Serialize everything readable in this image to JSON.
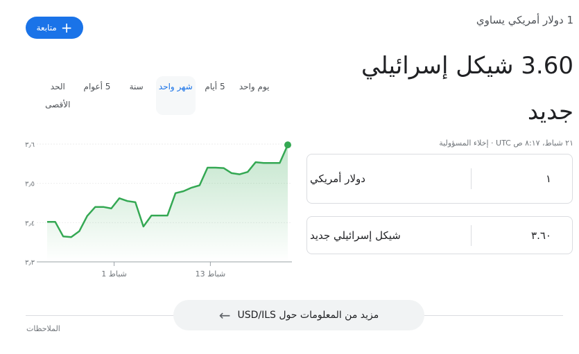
{
  "header": {
    "subtitle": "1 دولار أمريكي يساوي",
    "result": "3.60 شيكل إسرائيلي جديد",
    "follow_label": "متابعة",
    "follow_icon": "plus-icon"
  },
  "range_tabs": [
    {
      "label": "يوم واحد",
      "active": false
    },
    {
      "label": "5 أيام",
      "active": false
    },
    {
      "label": "شهر واحد",
      "active": true
    },
    {
      "label": "سنة",
      "active": false
    },
    {
      "label": "5 أعوام",
      "active": false
    },
    {
      "label": "الحد الأقصى",
      "active": false
    }
  ],
  "timestamp": "٢١ شباط، ٨:١٧ ص UTC · إخلاء المسؤولية",
  "converter": {
    "from": {
      "value": "١",
      "currency": "دولار أمريكي"
    },
    "to": {
      "value": "٣.٦٠",
      "currency": "شيكل إسرائيلي جديد"
    }
  },
  "chart_data": {
    "type": "area",
    "color": "#34a853",
    "ylim": [
      3.3,
      3.6
    ],
    "y_ticks": [
      {
        "value": 3.6,
        "label": "٣٫٦"
      },
      {
        "value": 3.5,
        "label": "٣٫٥"
      },
      {
        "value": 3.4,
        "label": "٣٫٤"
      },
      {
        "value": 3.3,
        "label": "٣٫٣"
      }
    ],
    "x_ticks": [
      {
        "index": 8.35,
        "label": "1 شباط"
      },
      {
        "index": 20.35,
        "label": "13 شباط"
      }
    ],
    "grid": true,
    "values": [
      3.402,
      3.402,
      3.365,
      3.363,
      3.378,
      3.417,
      3.44,
      3.44,
      3.436,
      3.462,
      3.455,
      3.452,
      3.39,
      3.418,
      3.418,
      3.418,
      3.475,
      3.48,
      3.489,
      3.495,
      3.54,
      3.54,
      3.539,
      3.526,
      3.523,
      3.529,
      3.554,
      3.552,
      3.552,
      3.552,
      3.598
    ]
  },
  "more_button": {
    "label": "مزيد من المعلومات حول USD/ILS",
    "icon": "arrow-left-icon"
  },
  "notes_label": "الملاحظات"
}
